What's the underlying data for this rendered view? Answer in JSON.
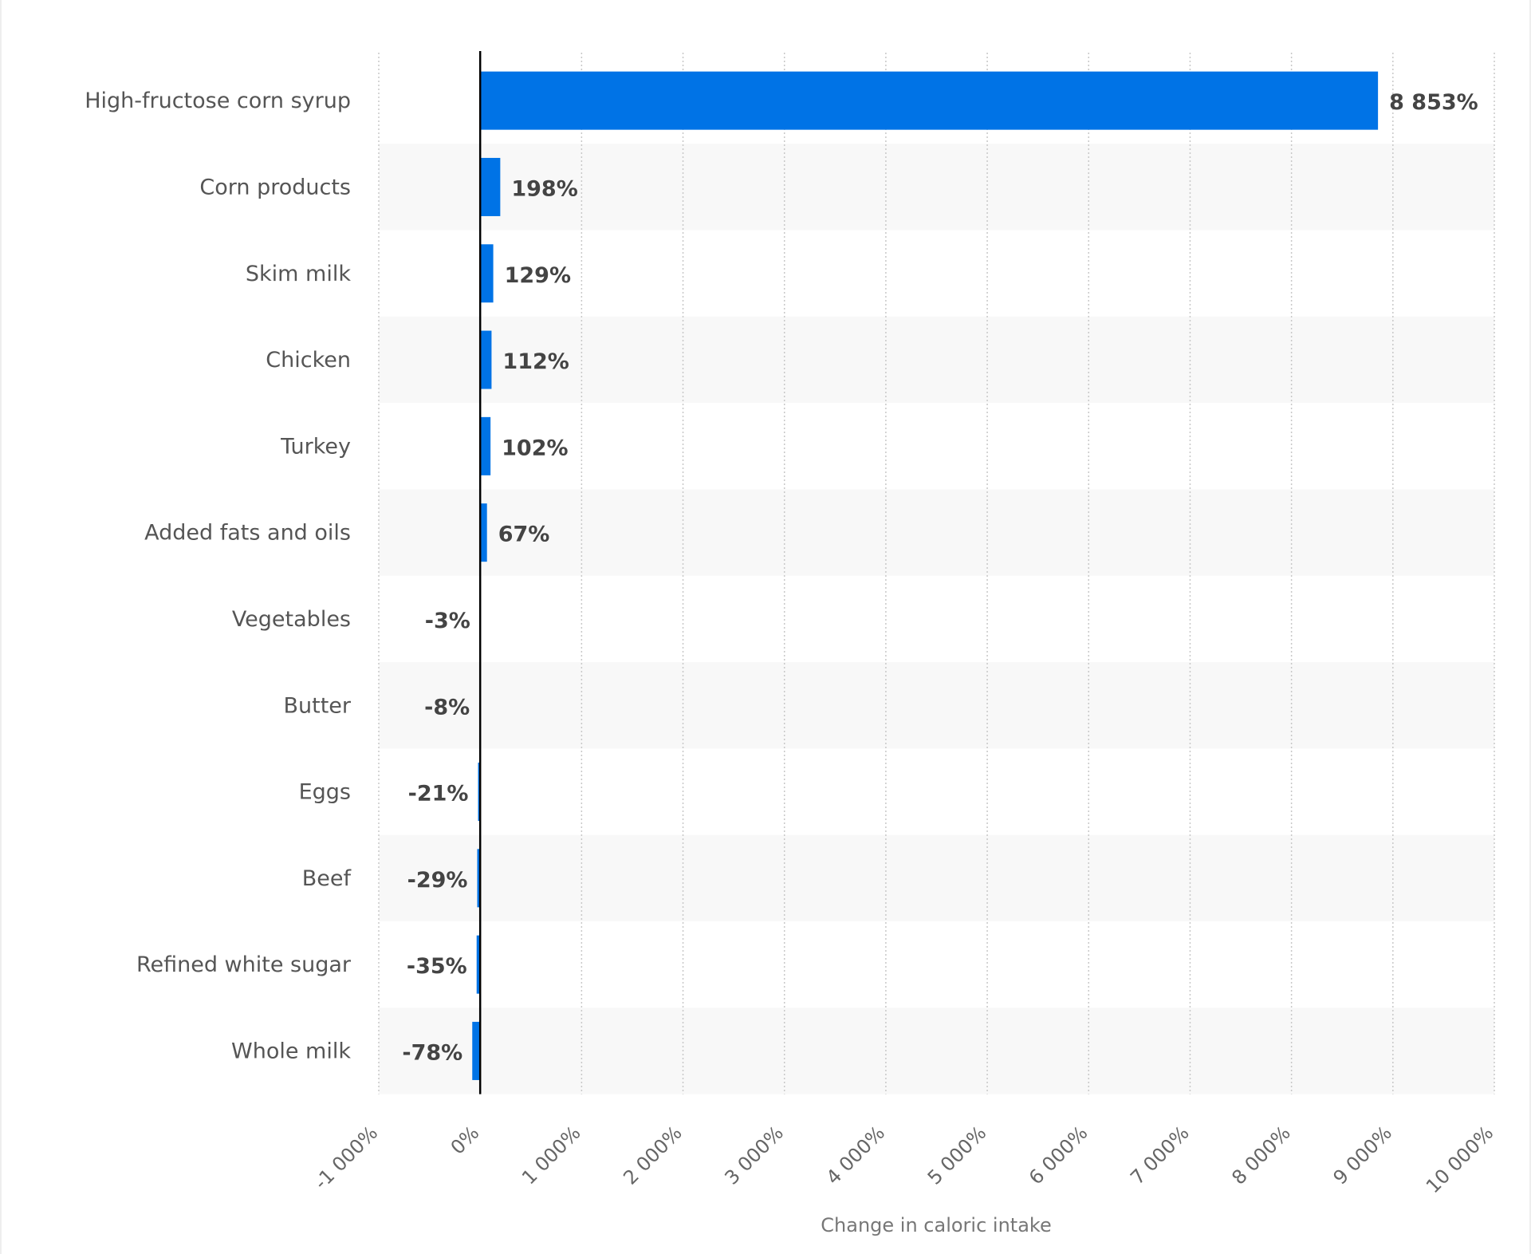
{
  "chart_data": {
    "type": "bar",
    "orientation": "horizontal",
    "categories": [
      "High-fructose corn syrup",
      "Corn products",
      "Skim milk",
      "Chicken",
      "Turkey",
      "Added fats and oils",
      "Vegetables",
      "Butter",
      "Eggs",
      "Beef",
      "Refined white sugar",
      "Whole milk"
    ],
    "values": [
      8853,
      198,
      129,
      112,
      102,
      67,
      -3,
      -8,
      -21,
      -29,
      -35,
      -78
    ],
    "value_labels": [
      "8 853%",
      "198%",
      "129%",
      "112%",
      "102%",
      "67%",
      "-3%",
      "-8%",
      "-21%",
      "-29%",
      "-35%",
      "-78%"
    ],
    "xlabel": "Change in caloric intake",
    "ylabel": "",
    "xlim": [
      -1000,
      10000
    ],
    "x_ticks": [
      -1000,
      0,
      1000,
      2000,
      3000,
      4000,
      5000,
      6000,
      7000,
      8000,
      9000,
      10000
    ],
    "x_tick_labels": [
      "-1 000%",
      "0%",
      "1 000%",
      "2 000%",
      "3 000%",
      "4 000%",
      "5 000%",
      "6 000%",
      "7 000%",
      "8 000%",
      "9 000%",
      "10 000%"
    ],
    "grid": "vertical dotted",
    "legend": "none",
    "colors": {
      "bar": "#0073e6",
      "band": "#f8f8f8",
      "grid": "#c8c8c8",
      "zero_line": "#000000"
    }
  }
}
